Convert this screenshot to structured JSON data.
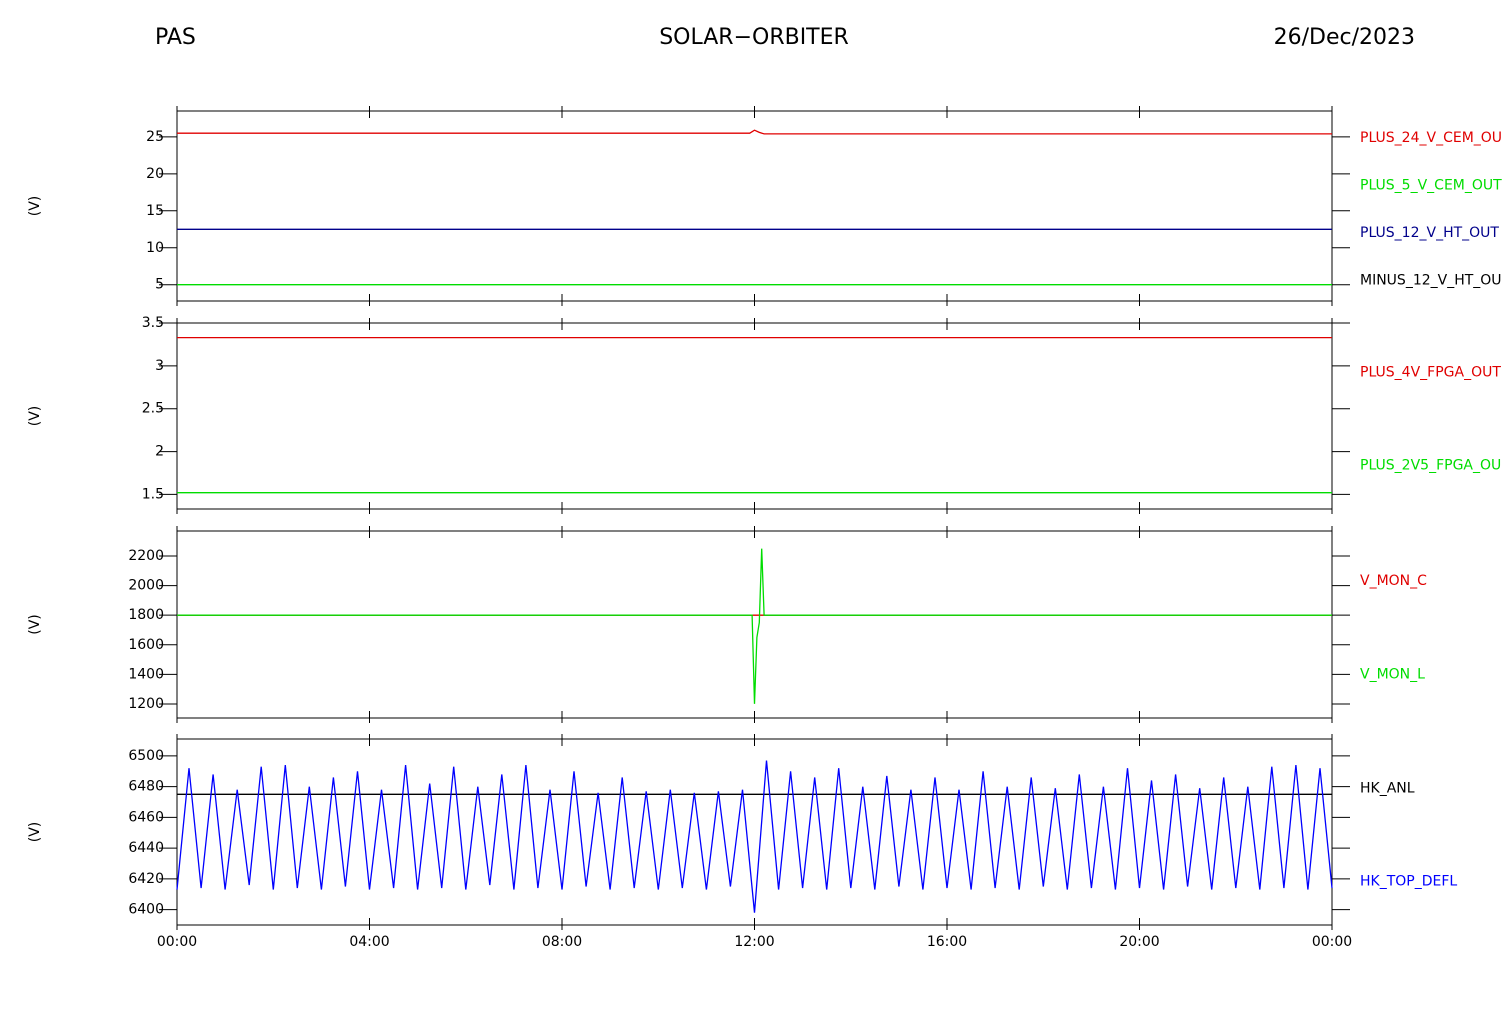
{
  "header": {
    "left": "PAS",
    "center": "SOLAR−ORBITER",
    "right": "26/Dec/2023"
  },
  "chart_data": [
    {
      "type": "line",
      "ylabel": "(V)",
      "xlim": [
        0,
        24
      ],
      "xticks": [
        0,
        4,
        8,
        12,
        16,
        20,
        24
      ],
      "ylim": [
        2.8,
        28.5
      ],
      "yticks": [
        5,
        10,
        15,
        20,
        25
      ],
      "series": [
        {
          "name": "PLUS_24_V_CEM_OU",
          "color": "#e00000",
          "x": [
            0,
            11.9,
            12,
            12.1,
            12.2,
            24
          ],
          "values": [
            25.5,
            25.5,
            25.9,
            25.6,
            25.4,
            25.4
          ]
        },
        {
          "name": "PLUS_5_V_CEM_OUT",
          "color": "#00dd00",
          "x": [
            0,
            24
          ],
          "values": [
            5,
            5
          ]
        },
        {
          "name": "PLUS_12_V_HT_OUT",
          "color": "#00008b",
          "x": [
            0,
            24
          ],
          "values": [
            12.5,
            12.5
          ]
        },
        {
          "name": "MINUS_12_V_HT_OU",
          "color": "#000000",
          "x": [
            0,
            24
          ],
          "values": [
            null,
            null
          ]
        }
      ]
    },
    {
      "type": "line",
      "ylabel": "(V)",
      "xlim": [
        0,
        24
      ],
      "xticks": [
        0,
        4,
        8,
        12,
        16,
        20,
        24
      ],
      "ylim": [
        1.33,
        3.5
      ],
      "yticks": [
        1.5,
        2.0,
        2.5,
        3.0,
        3.5
      ],
      "series": [
        {
          "name": "PLUS_4V_FPGA_OUT",
          "color": "#e00000",
          "x": [
            0,
            24
          ],
          "values": [
            3.33,
            3.33
          ]
        },
        {
          "name": "PLUS_2V5_FPGA_OU",
          "color": "#00dd00",
          "x": [
            0,
            24
          ],
          "values": [
            1.52,
            1.52
          ]
        }
      ]
    },
    {
      "type": "line",
      "ylabel": "(V)",
      "xlim": [
        0,
        24
      ],
      "xticks": [
        0,
        4,
        8,
        12,
        16,
        20,
        24
      ],
      "ylim": [
        1105,
        2369
      ],
      "yticks": [
        1200,
        1400,
        1600,
        1800,
        2000,
        2200
      ],
      "series": [
        {
          "name": "V_MON_C",
          "color": "#e00000",
          "x": [
            0,
            24
          ],
          "values": [
            1800,
            1800
          ]
        },
        {
          "name": "V_MON_L",
          "color": "#00dd00",
          "x": [
            0,
            11.95,
            12.0,
            12.05,
            12.1,
            12.15,
            12.2,
            24
          ],
          "values": [
            1800,
            1800,
            1200,
            1650,
            1750,
            2250,
            1800,
            1800
          ]
        }
      ]
    },
    {
      "type": "line",
      "ylabel": "(V)",
      "xlim": [
        0,
        24
      ],
      "xticks": [
        {
          "value": 0,
          "label": "00:00"
        },
        {
          "value": 4,
          "label": "04:00"
        },
        {
          "value": 8,
          "label": "08:00"
        },
        {
          "value": 12,
          "label": "12:00"
        },
        {
          "value": 16,
          "label": "16:00"
        },
        {
          "value": 20,
          "label": "20:00"
        },
        {
          "value": 24,
          "label": "00:00"
        }
      ],
      "ylim": [
        6390,
        6511
      ],
      "yticks": [
        6400,
        6420,
        6440,
        6460,
        6480,
        6500
      ],
      "series": [
        {
          "name": "HK_ANL",
          "color": "#000000",
          "x": [
            0,
            24
          ],
          "values": [
            6475,
            6475
          ]
        },
        {
          "name": "HK_TOP_DEFL",
          "color": "#0000ff",
          "x": [
            0,
            0.25,
            0.5,
            0.75,
            1,
            1.25,
            1.5,
            1.75,
            2,
            2.25,
            2.5,
            2.75,
            3,
            3.25,
            3.5,
            3.75,
            4,
            4.25,
            4.5,
            4.75,
            5,
            5.25,
            5.5,
            5.75,
            6,
            6.25,
            6.5,
            6.75,
            7,
            7.25,
            7.5,
            7.75,
            8,
            8.25,
            8.5,
            8.75,
            9,
            9.25,
            9.5,
            9.75,
            10,
            10.25,
            10.5,
            10.75,
            11,
            11.25,
            11.5,
            11.75,
            12,
            12.25,
            12.5,
            12.75,
            13,
            13.25,
            13.5,
            13.75,
            14,
            14.25,
            14.5,
            14.75,
            15,
            15.25,
            15.5,
            15.75,
            16,
            16.25,
            16.5,
            16.75,
            17,
            17.25,
            17.5,
            17.75,
            18,
            18.25,
            18.5,
            18.75,
            19,
            19.25,
            19.5,
            19.75,
            20,
            20.25,
            20.5,
            20.75,
            21,
            21.25,
            21.5,
            21.75,
            22,
            22.25,
            22.5,
            22.75,
            23,
            23.25,
            23.5,
            23.75,
            24
          ],
          "values": [
            6413,
            6492,
            6414,
            6488,
            6413,
            6478,
            6416,
            6493,
            6413,
            6494,
            6414,
            6480,
            6413,
            6486,
            6415,
            6490,
            6413,
            6478,
            6414,
            6494,
            6413,
            6482,
            6414,
            6493,
            6413,
            6480,
            6416,
            6488,
            6413,
            6494,
            6414,
            6478,
            6413,
            6490,
            6415,
            6476,
            6413,
            6486,
            6414,
            6477,
            6413,
            6478,
            6414,
            6476,
            6413,
            6477,
            6415,
            6478,
            6398,
            6497,
            6413,
            6490,
            6414,
            6486,
            6413,
            6492,
            6414,
            6480,
            6413,
            6487,
            6415,
            6478,
            6413,
            6486,
            6414,
            6478,
            6413,
            6490,
            6414,
            6480,
            6413,
            6486,
            6415,
            6479,
            6413,
            6488,
            6414,
            6480,
            6413,
            6492,
            6414,
            6484,
            6413,
            6488,
            6415,
            6479,
            6413,
            6486,
            6414,
            6480,
            6413,
            6493,
            6414,
            6494,
            6413,
            6492,
            6414
          ]
        }
      ]
    }
  ]
}
